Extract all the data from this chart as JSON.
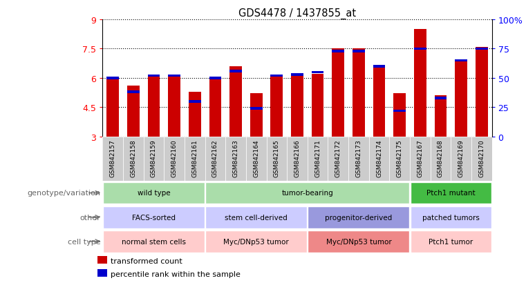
{
  "title": "GDS4478 / 1437855_at",
  "samples": [
    "GSM842157",
    "GSM842158",
    "GSM842159",
    "GSM842160",
    "GSM842161",
    "GSM842162",
    "GSM842163",
    "GSM842164",
    "GSM842165",
    "GSM842166",
    "GSM842171",
    "GSM842172",
    "GSM842173",
    "GSM842174",
    "GSM842175",
    "GSM842167",
    "GSM842168",
    "GSM842169",
    "GSM842170"
  ],
  "red_values": [
    6.0,
    5.6,
    6.1,
    6.05,
    5.3,
    6.05,
    6.6,
    5.2,
    6.1,
    6.1,
    6.2,
    7.5,
    7.5,
    6.6,
    5.2,
    8.5,
    5.1,
    6.9,
    7.6
  ],
  "blue_pct": [
    50,
    38,
    52,
    52,
    30,
    50,
    56,
    24,
    52,
    53,
    55,
    73,
    73,
    60,
    22,
    75,
    33,
    65,
    75
  ],
  "ymin": 3.0,
  "ymax": 9.0,
  "yticks": [
    3.0,
    4.5,
    6.0,
    7.5,
    9.0
  ],
  "ytick_labels": [
    "3",
    "4.5",
    "6",
    "7.5",
    "9"
  ],
  "right_yticks": [
    0,
    25,
    50,
    75,
    100
  ],
  "right_ytick_labels": [
    "0",
    "25",
    "50",
    "75",
    "100%"
  ],
  "bar_color": "#cc0000",
  "blue_color": "#0000cc",
  "bg_color": "#ffffff",
  "sample_bg_color": "#cccccc",
  "genotype_groups": [
    {
      "label": "wild type",
      "start": 0,
      "end": 5,
      "color": "#aaddaa"
    },
    {
      "label": "tumor-bearing",
      "start": 5,
      "end": 15,
      "color": "#aaddaa"
    },
    {
      "label": "Ptch1 mutant",
      "start": 15,
      "end": 19,
      "color": "#44bb44"
    }
  ],
  "other_groups": [
    {
      "label": "FACS-sorted",
      "start": 0,
      "end": 5,
      "color": "#ccccff"
    },
    {
      "label": "stem cell-derived",
      "start": 5,
      "end": 10,
      "color": "#ccccff"
    },
    {
      "label": "progenitor-derived",
      "start": 10,
      "end": 15,
      "color": "#9999dd"
    },
    {
      "label": "patched tumors",
      "start": 15,
      "end": 19,
      "color": "#ccccff"
    }
  ],
  "celltype_groups": [
    {
      "label": "normal stem cells",
      "start": 0,
      "end": 5,
      "color": "#ffcccc"
    },
    {
      "label": "Myc/DNp53 tumor",
      "start": 5,
      "end": 10,
      "color": "#ffcccc"
    },
    {
      "label": "Myc/DNp53 tumor",
      "start": 10,
      "end": 15,
      "color": "#ee8888"
    },
    {
      "label": "Ptch1 tumor",
      "start": 15,
      "end": 19,
      "color": "#ffcccc"
    }
  ],
  "row_labels": [
    "genotype/variation",
    "other",
    "cell type"
  ],
  "legend_items": [
    {
      "color": "#cc0000",
      "label": "transformed count"
    },
    {
      "color": "#0000cc",
      "label": "percentile rank within the sample"
    }
  ]
}
